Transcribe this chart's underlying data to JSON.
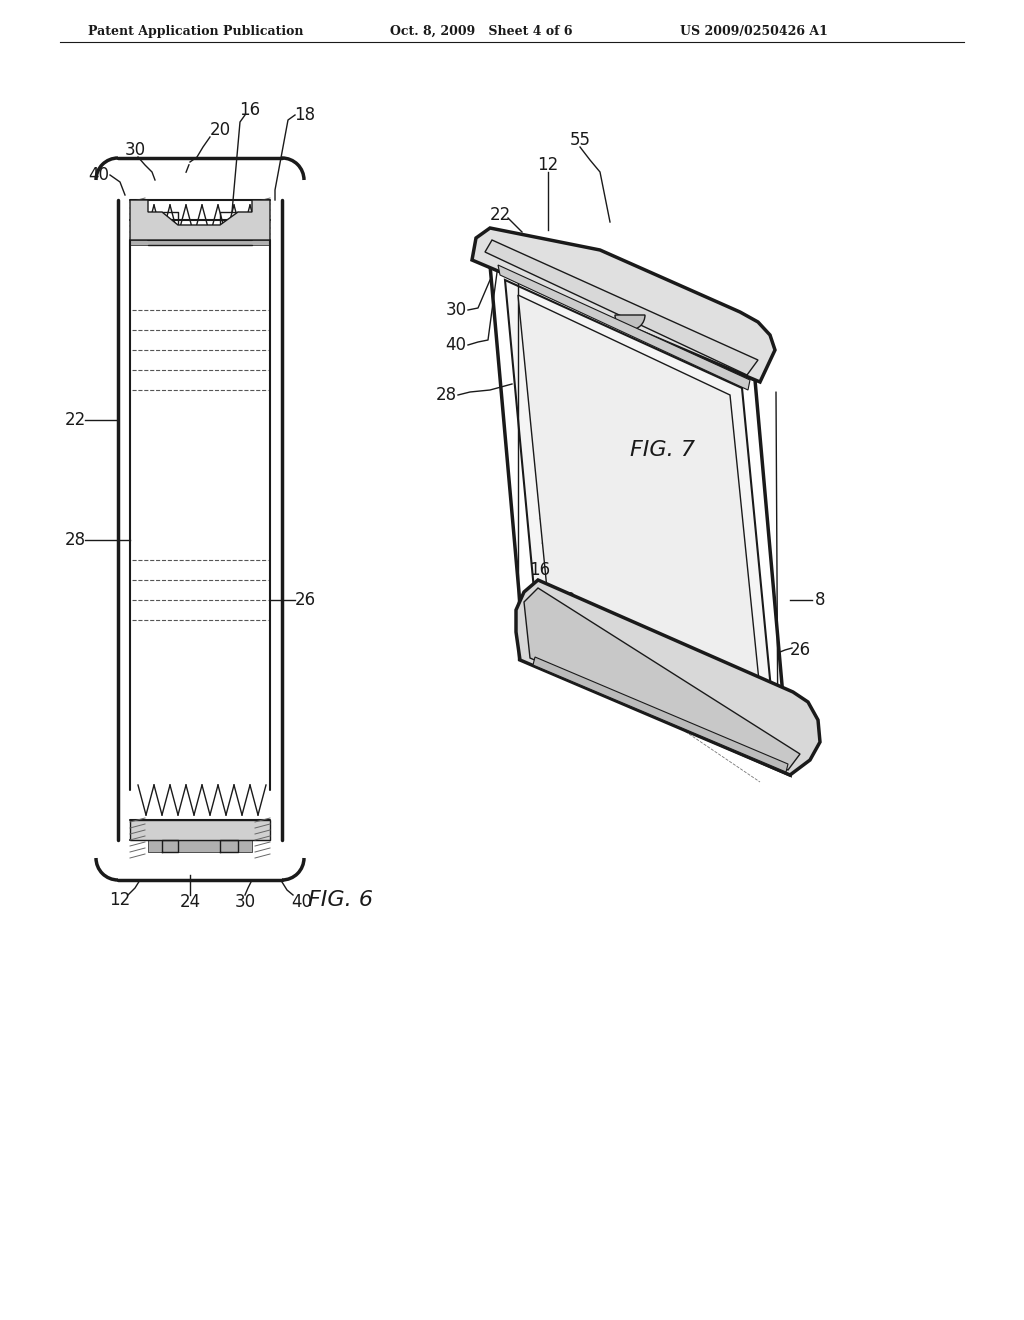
{
  "bg_color": "#ffffff",
  "header_left": "Patent Application Publication",
  "header_mid": "Oct. 8, 2009   Sheet 4 of 6",
  "header_right": "US 2009/0250426 A1",
  "fig6_label": "FIG. 6",
  "fig7_label": "FIG. 7",
  "line_color": "#1a1a1a",
  "fill_light": "#e8e8e8",
  "fill_medium": "#c8c8c8",
  "fill_dark": "#888888"
}
